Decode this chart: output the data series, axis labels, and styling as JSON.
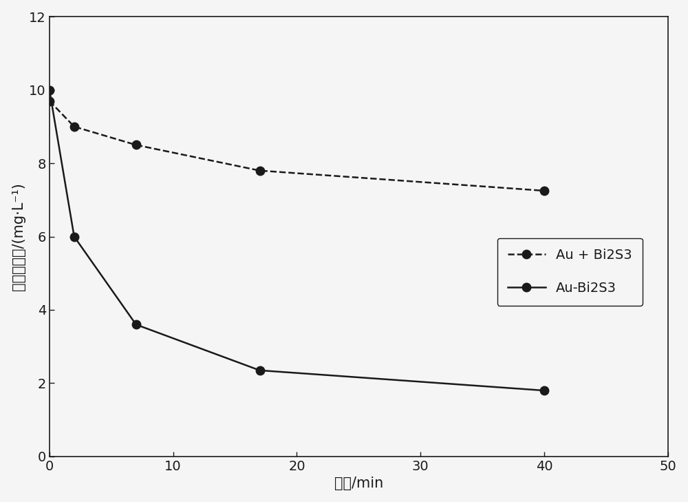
{
  "series1_label": "Au + Bi2S3",
  "series2_label": "Au-Bi2S3",
  "series1_x": [
    0,
    2,
    7,
    17,
    40
  ],
  "series1_y": [
    9.7,
    9.0,
    8.5,
    7.8,
    7.25
  ],
  "series2_x": [
    0,
    2,
    7,
    17,
    40
  ],
  "series2_y": [
    10.0,
    6.0,
    3.6,
    2.35,
    1.8
  ],
  "xlabel": "时间/min",
  "ylabel": "亚甲蓝浓度/(mg·L⁻¹)",
  "xlim": [
    0,
    50
  ],
  "ylim": [
    0,
    12
  ],
  "xticks": [
    0,
    10,
    20,
    30,
    40,
    50
  ],
  "yticks": [
    0,
    2,
    4,
    6,
    8,
    10,
    12
  ],
  "line_color": "#1a1a1a",
  "background_color": "#f5f5f5",
  "label_fontsize": 15,
  "tick_fontsize": 14,
  "legend_fontsize": 14
}
